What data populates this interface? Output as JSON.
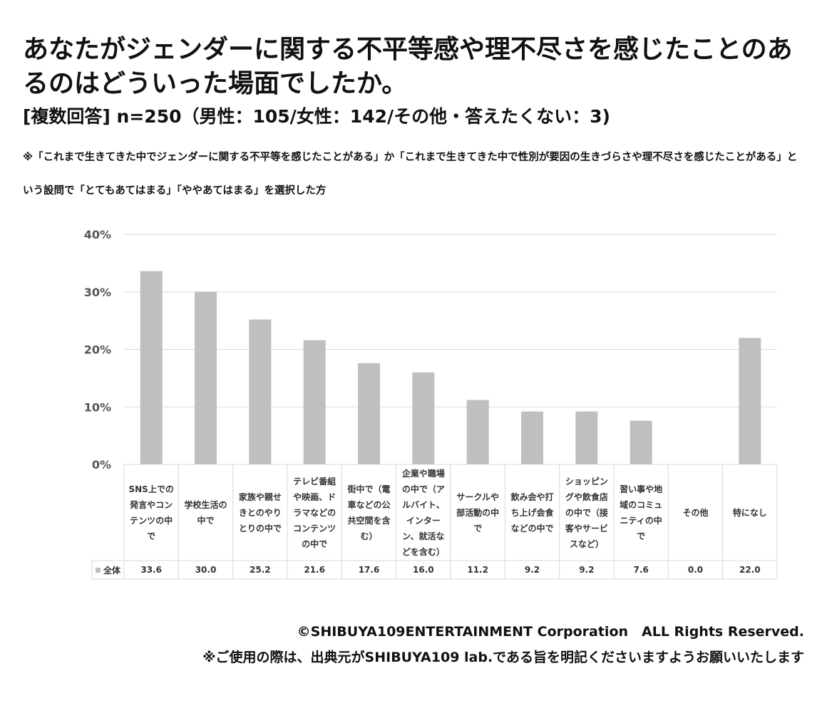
{
  "header": {
    "title": "あなたがジェンダーに関する不平等感や理不尽さを感じたことのあるのはどういった場面でしたか。",
    "subtitle": "[複数回答] n=250（男性：105/女性：142/その他・答えたくない：3)",
    "note": "※「これまで生きてきた中でジェンダーに関する不平等を感じたことがある」か「これまで生きてきた中で性別が要因の生きづらさや理不尽さを感じたことがある」という設問で「とてもあてはまる」「ややあてはまる」を選択した方"
  },
  "chart_data": {
    "type": "bar",
    "categories": [
      "SNS上での発言やコンテンツの中で",
      "学校生活の中で",
      "家族や親せきとのやりとりの中で",
      "テレビ番組や映画、ドラマなどのコンテンツの中で",
      "街中で（電車などの公共空間を含む）",
      "企業や職場の中で（アルバイト、インターン、就活などを含む）",
      "サークルや部活動の中で",
      "飲み会や打ち上げ会食などの中で",
      "ショッピングや飲食店の中で（接客やサービスなど）",
      "習い事や地域のコミュニティの中で",
      "その他",
      "特になし"
    ],
    "series": [
      {
        "name": "全体",
        "values": [
          33.6,
          30.0,
          25.2,
          21.6,
          17.6,
          16.0,
          11.2,
          9.2,
          9.2,
          7.6,
          0.0,
          22.0
        ]
      }
    ],
    "value_labels": [
      "33.6",
      "30.0",
      "25.2",
      "21.6",
      "17.6",
      "16.0",
      "11.2",
      "9.2",
      "9.2",
      "7.6",
      "0.0",
      "22.0"
    ],
    "y_ticks": [
      "0%",
      "10%",
      "20%",
      "30%",
      "40%"
    ],
    "ylim": [
      0,
      40
    ],
    "grid": true,
    "bar_color": "#bfbfbf",
    "grid_color": "#d9d9d9",
    "legend": "data-table-left"
  },
  "footer": {
    "copyright": "©SHIBUYA109ENTERTAINMENT Corporation　ALL Rights Reserved.",
    "notice": "※ご使用の際は、出典元がSHIBUYA109 lab.である旨を明記くださいますようお願いいたします"
  }
}
